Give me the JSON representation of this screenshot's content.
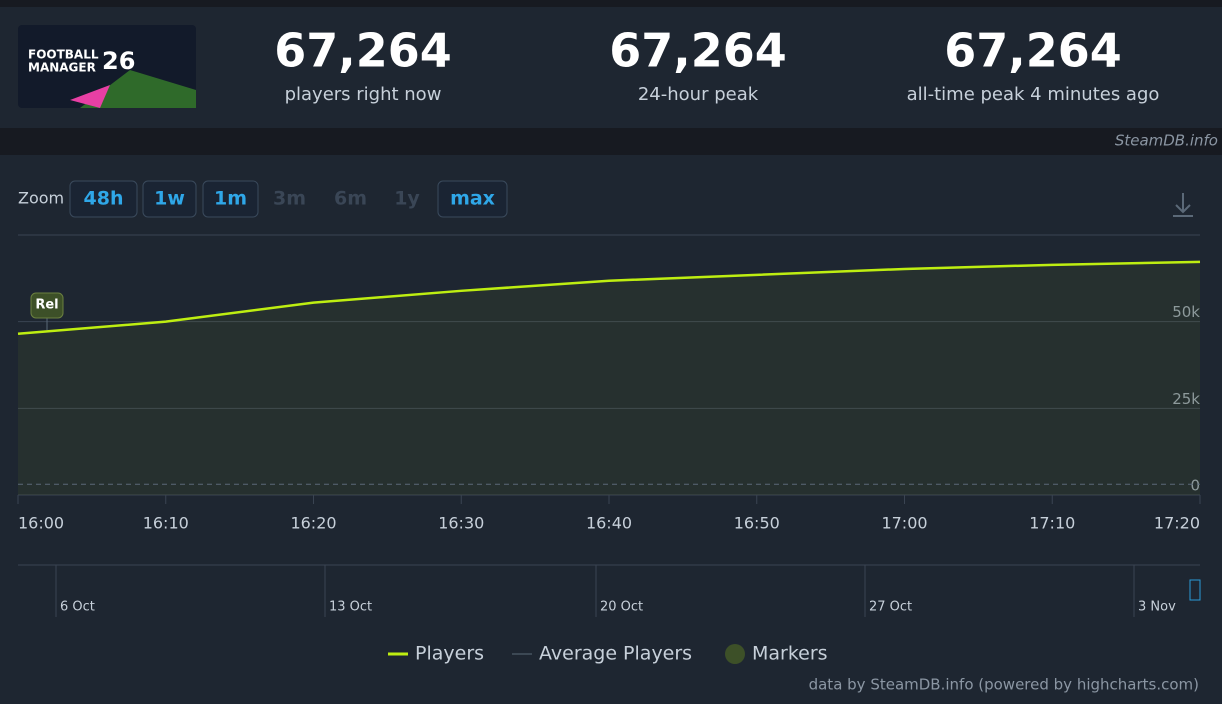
{
  "game_logo": [
    "FOOTBALL",
    "MANAGER",
    "26"
  ],
  "stats": [
    {
      "value": "67,264",
      "label": "players right now"
    },
    {
      "value": "67,264",
      "label": "24-hour peak"
    },
    {
      "value": "67,264",
      "label": "all-time peak 4 minutes ago"
    }
  ],
  "watermark": "SteamDB.info",
  "zoom": {
    "label": "Zoom",
    "buttons": [
      {
        "label": "48h",
        "enabled": true
      },
      {
        "label": "1w",
        "enabled": true
      },
      {
        "label": "1m",
        "enabled": true
      },
      {
        "label": "3m",
        "enabled": false
      },
      {
        "label": "6m",
        "enabled": false
      },
      {
        "label": "1y",
        "enabled": false
      },
      {
        "label": "max",
        "enabled": true
      }
    ]
  },
  "chart_data": {
    "type": "line",
    "categories": [
      "16:00",
      "16:10",
      "16:20",
      "16:30",
      "16:40",
      "16:50",
      "17:00",
      "17:10",
      "17:20"
    ],
    "series": [
      {
        "name": "Players",
        "color": "#beee11",
        "values": [
          46500,
          50000,
          55500,
          58900,
          61800,
          63500,
          65200,
          66400,
          67264
        ]
      },
      {
        "name": "Average Players",
        "color": "#5b6978",
        "dashed": true,
        "values": [
          3100,
          3100,
          3100,
          3100,
          3100,
          3100,
          3100,
          3100,
          3100
        ]
      }
    ],
    "ylim": [
      0,
      75000
    ],
    "yticks": [
      0,
      {
        "value": 25000,
        "label": "25k"
      },
      {
        "value": 50000,
        "label": "50k"
      }
    ],
    "grid": true,
    "markers": {
      "name": "Markers",
      "color": "#3d5028",
      "items": [
        "Rel"
      ]
    },
    "navigator": [
      "6 Oct",
      "13 Oct",
      "20 Oct",
      "27 Oct",
      "3 Nov"
    ]
  },
  "credits": "data by SteamDB.info (powered by highcharts.com)"
}
